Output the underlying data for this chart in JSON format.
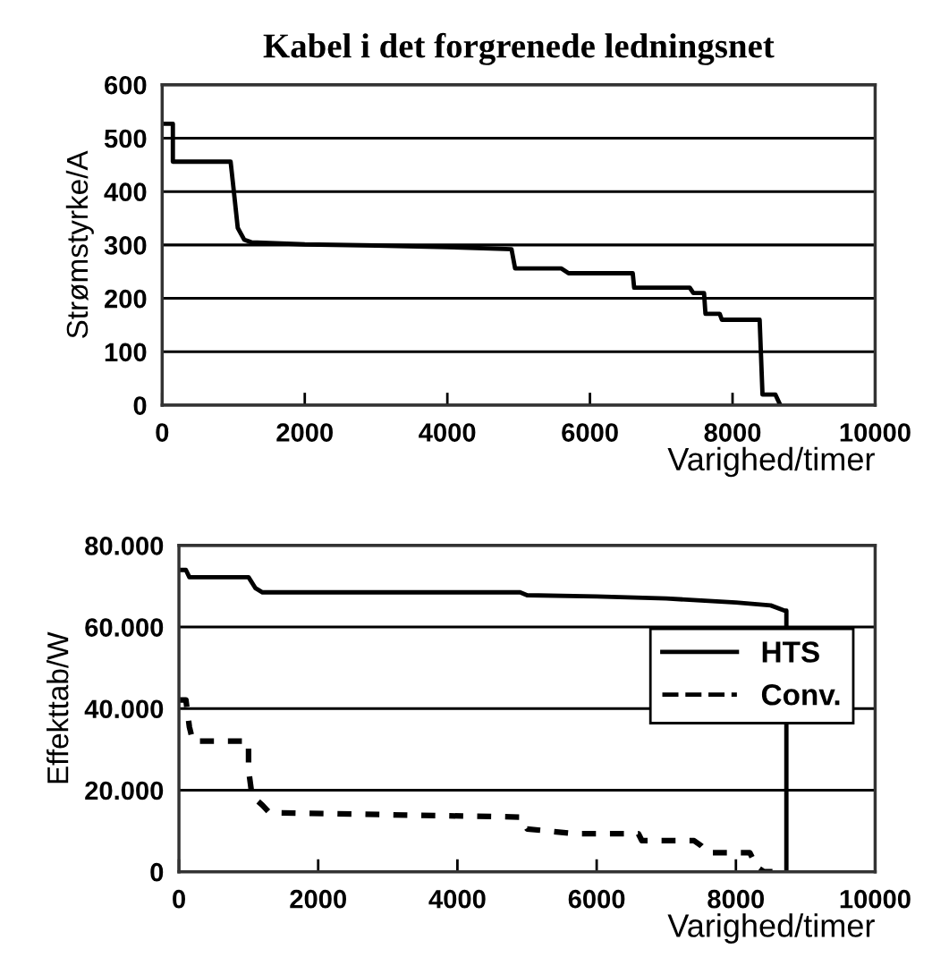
{
  "chart_data": [
    {
      "type": "line",
      "title": "Kabel i det forgrenede ledningsnet",
      "xlabel": "Varighed/timer",
      "ylabel": "Strømstyrke/A",
      "xlim": [
        0,
        10000
      ],
      "xticks": [
        0,
        2000,
        4000,
        6000,
        8000,
        10000
      ],
      "ylim": [
        0,
        600
      ],
      "yticks": [
        0,
        100,
        200,
        300,
        400,
        500,
        600
      ],
      "grid": "y",
      "line_style": "solid",
      "series": [
        {
          "color": "#000000",
          "x": [
            0,
            150,
            150,
            960,
            1000,
            1060,
            1150,
            1250,
            2000,
            3000,
            4000,
            4900,
            4950,
            5600,
            5700,
            6600,
            6620,
            7400,
            7450,
            7600,
            7620,
            7820,
            7850,
            8100,
            8380,
            8400,
            8420,
            8600,
            8670
          ],
          "values": [
            527,
            527,
            456,
            456,
            407,
            332,
            310,
            305,
            301,
            299,
            296,
            292,
            256,
            256,
            247,
            247,
            220,
            220,
            210,
            210,
            171,
            171,
            160,
            160,
            160,
            90,
            20,
            20,
            0
          ]
        }
      ]
    },
    {
      "type": "line",
      "xlabel": "Varighed/timer",
      "ylabel": "Effekttab/W",
      "xlim": [
        0,
        10000
      ],
      "xticks": [
        0,
        2000,
        4000,
        6000,
        8000,
        10000
      ],
      "ylim": [
        0,
        80000
      ],
      "yticks": [
        0,
        {
          "value": 20000,
          "label": "20.000"
        },
        {
          "value": 40000,
          "label": "40.000"
        },
        {
          "value": 60000,
          "label": "60.000"
        },
        {
          "value": 80000,
          "label": "80.000"
        }
      ],
      "grid": "y",
      "legend": "center right",
      "series": [
        {
          "name": "HTS",
          "color": "#000000",
          "line_style": "solid",
          "x": [
            0,
            100,
            150,
            1000,
            1100,
            1200,
            2000,
            4900,
            5000,
            6000,
            7000,
            7500,
            8000,
            8500,
            8700,
            8725,
            8725
          ],
          "values": [
            74000,
            74000,
            72200,
            72200,
            69500,
            68500,
            68500,
            68500,
            67800,
            67500,
            67000,
            66500,
            66000,
            65300,
            64000,
            64000,
            0
          ]
        },
        {
          "name": "Conv.",
          "color": "#000000",
          "line_style": "dashed",
          "x": [
            0,
            100,
            150,
            200,
            1000,
            1000,
            1050,
            1200,
            1300,
            4900,
            5000,
            5700,
            6600,
            6650,
            7400,
            7500,
            7600,
            8200,
            8300,
            8400,
            8700
          ],
          "values": [
            42100,
            42100,
            35500,
            32000,
            32000,
            25000,
            18600,
            16300,
            14500,
            13400,
            10500,
            9300,
            9300,
            7600,
            7600,
            6400,
            4650,
            4650,
            1200,
            0,
            0
          ]
        }
      ]
    }
  ]
}
